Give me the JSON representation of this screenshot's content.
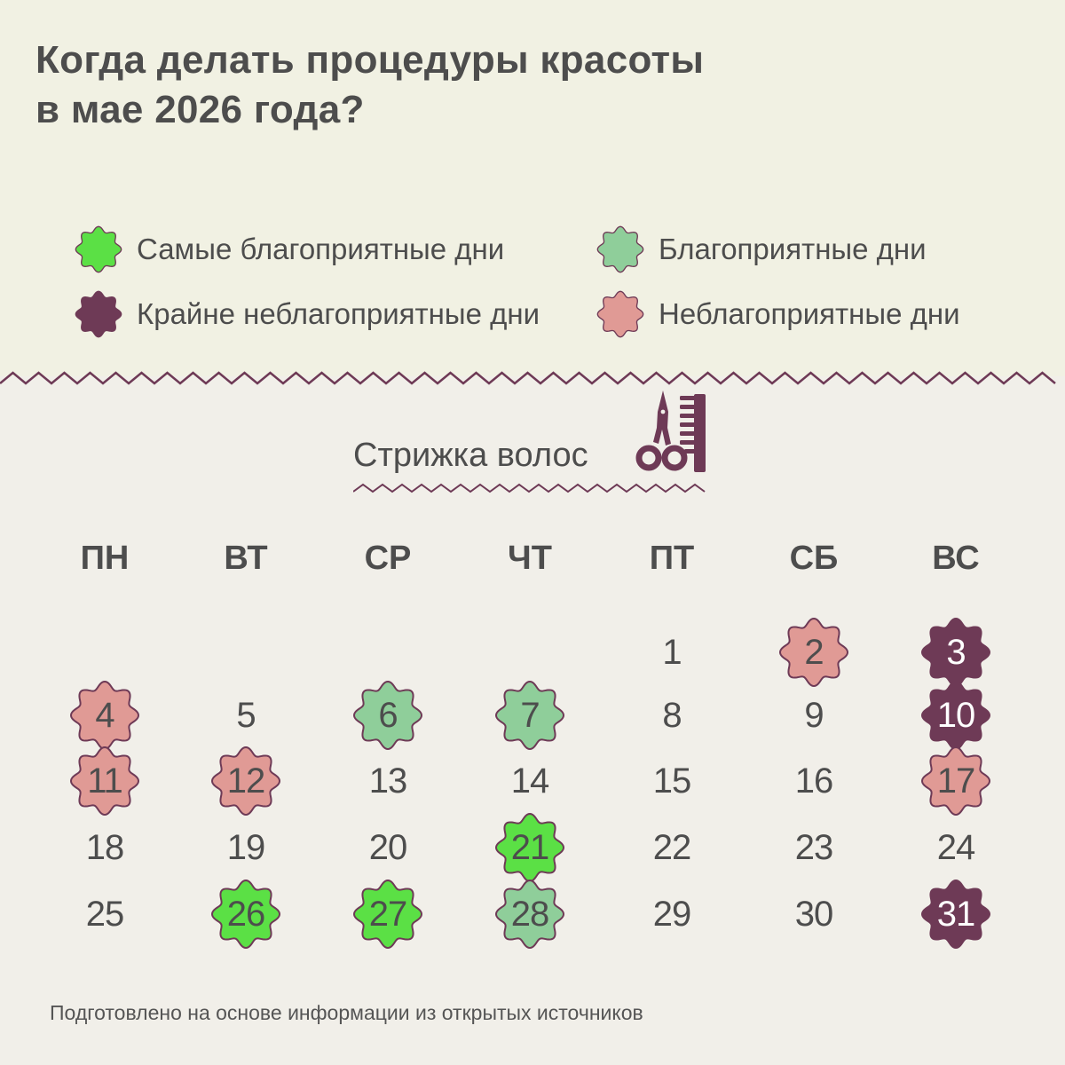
{
  "header": {
    "title_line1": "Когда делать процедуры красоты",
    "title_line2": "в мае 2026 года?"
  },
  "colors": {
    "best": "#5be045",
    "good": "#8fce9a",
    "bad": "#e09a95",
    "severe": "#6e3a56",
    "outline": "#6e3a56",
    "text": "#4d4d4d",
    "top_background": "#f1f1e3",
    "bottom_background": "#f1efe9"
  },
  "legend": {
    "best": "Самые благоприятные дни",
    "good": "Благоприятные дни",
    "severe": "Крайне неблагоприятные дни",
    "bad": "Неблагоприятные дни"
  },
  "section": {
    "title": "Стрижка волос",
    "icon": "scissors-comb-icon"
  },
  "calendar": {
    "month": "май 2026",
    "weekdays": [
      "ПН",
      "ВТ",
      "СР",
      "ЧТ",
      "ПТ",
      "СБ",
      "ВС"
    ],
    "days": [
      {
        "day": "1",
        "col": 4,
        "row": 0,
        "type": "neutral"
      },
      {
        "day": "2",
        "col": 5,
        "row": 0,
        "type": "bad"
      },
      {
        "day": "3",
        "col": 6,
        "row": 0,
        "type": "severe"
      },
      {
        "day": "4",
        "col": 0,
        "row": 1,
        "type": "bad"
      },
      {
        "day": "5",
        "col": 1,
        "row": 1,
        "type": "neutral"
      },
      {
        "day": "6",
        "col": 2,
        "row": 1,
        "type": "good"
      },
      {
        "day": "7",
        "col": 3,
        "row": 1,
        "type": "good"
      },
      {
        "day": "8",
        "col": 4,
        "row": 1,
        "type": "neutral"
      },
      {
        "day": "9",
        "col": 5,
        "row": 1,
        "type": "neutral"
      },
      {
        "day": "10",
        "col": 6,
        "row": 1,
        "type": "severe"
      },
      {
        "day": "11",
        "col": 0,
        "row": 2,
        "type": "bad"
      },
      {
        "day": "12",
        "col": 1,
        "row": 2,
        "type": "bad"
      },
      {
        "day": "13",
        "col": 2,
        "row": 2,
        "type": "neutral"
      },
      {
        "day": "14",
        "col": 3,
        "row": 2,
        "type": "neutral"
      },
      {
        "day": "15",
        "col": 4,
        "row": 2,
        "type": "neutral"
      },
      {
        "day": "16",
        "col": 5,
        "row": 2,
        "type": "neutral"
      },
      {
        "day": "17",
        "col": 6,
        "row": 2,
        "type": "bad"
      },
      {
        "day": "18",
        "col": 0,
        "row": 3,
        "type": "neutral"
      },
      {
        "day": "19",
        "col": 1,
        "row": 3,
        "type": "neutral"
      },
      {
        "day": "20",
        "col": 2,
        "row": 3,
        "type": "neutral"
      },
      {
        "day": "21",
        "col": 3,
        "row": 3,
        "type": "best"
      },
      {
        "day": "22",
        "col": 4,
        "row": 3,
        "type": "neutral"
      },
      {
        "day": "23",
        "col": 5,
        "row": 3,
        "type": "neutral"
      },
      {
        "day": "24",
        "col": 6,
        "row": 3,
        "type": "neutral"
      },
      {
        "day": "25",
        "col": 0,
        "row": 4,
        "type": "neutral"
      },
      {
        "day": "26",
        "col": 1,
        "row": 4,
        "type": "best"
      },
      {
        "day": "27",
        "col": 2,
        "row": 4,
        "type": "best"
      },
      {
        "day": "28",
        "col": 3,
        "row": 4,
        "type": "good"
      },
      {
        "day": "29",
        "col": 4,
        "row": 4,
        "type": "neutral"
      },
      {
        "day": "30",
        "col": 5,
        "row": 4,
        "type": "neutral"
      },
      {
        "day": "31",
        "col": 6,
        "row": 4,
        "type": "severe"
      }
    ]
  },
  "footer": {
    "note": "Подготовлено на основе информации из открытых источников"
  }
}
